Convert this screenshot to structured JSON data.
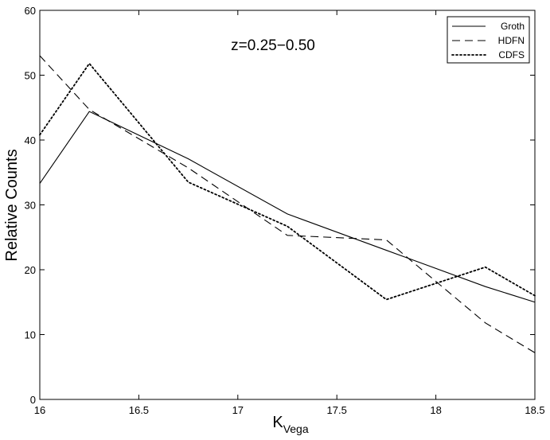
{
  "chart_data": {
    "type": "line",
    "title": "",
    "annotation": "z=0.25−0.50",
    "xlabel": "K",
    "xlabel_subscript": "Vega",
    "ylabel": "Relative Counts",
    "xlim": [
      16,
      18.5
    ],
    "ylim": [
      0,
      60
    ],
    "x_ticks": [
      16,
      16.5,
      17,
      17.5,
      18,
      18.5
    ],
    "x_tick_labels": [
      "16",
      "16.5",
      "17",
      "17.5",
      "18",
      "18.5"
    ],
    "y_ticks": [
      0,
      10,
      20,
      30,
      40,
      50,
      60
    ],
    "y_tick_labels": [
      "0",
      "10",
      "20",
      "30",
      "40",
      "50",
      "60"
    ],
    "grid": false,
    "legend_position": "top-right",
    "series": [
      {
        "name": "Groth",
        "line_style": "solid",
        "color": "#000000",
        "x": [
          16,
          16.25,
          16.75,
          17.25,
          17.75,
          18.25,
          18.5
        ],
        "y": [
          33.3,
          44.4,
          37.1,
          28.6,
          23.0,
          17.4,
          15.0
        ]
      },
      {
        "name": "HDFN",
        "line_style": "dashed",
        "color": "#000000",
        "x": [
          16,
          16.25,
          16.75,
          17.25,
          17.75,
          18.25,
          18.5
        ],
        "y": [
          53.0,
          44.7,
          35.7,
          25.3,
          24.6,
          11.8,
          7.2
        ]
      },
      {
        "name": "CDFS",
        "line_style": "dotted",
        "color": "#000000",
        "x": [
          16,
          16.25,
          16.75,
          17.25,
          17.75,
          18.25,
          18.5
        ],
        "y": [
          40.8,
          51.8,
          33.5,
          26.7,
          15.4,
          20.4,
          16.0
        ]
      }
    ]
  }
}
